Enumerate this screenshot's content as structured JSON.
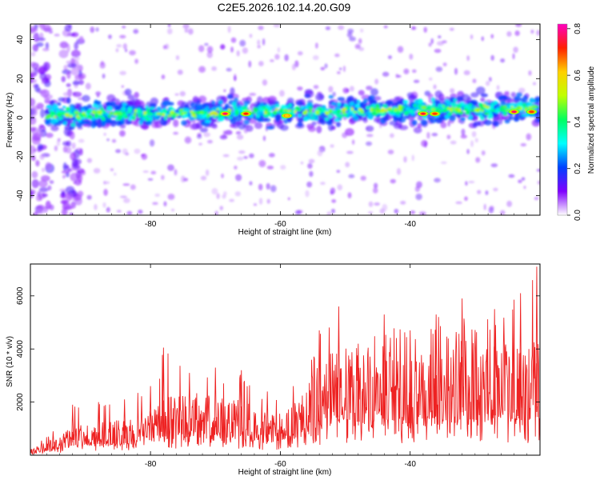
{
  "figure": {
    "title": "C2E5.2026.102.14.20.G09"
  },
  "chart_data": [
    {
      "type": "heatmap",
      "xlabel": "Height of straight line (km)",
      "ylabel": "Frequency (Hz)",
      "xlim": [
        -98.5,
        -20
      ],
      "ylim": [
        -50,
        48
      ],
      "xticks": [
        "-80",
        "-60",
        "-40"
      ],
      "yticks": [
        "40",
        "20",
        "0",
        "-20",
        "-40"
      ],
      "colorbar": {
        "label": "Normalized spectral amplitude",
        "range": [
          0.0,
          0.82
        ],
        "ticks": [
          "0.0",
          "0.2",
          "0.4",
          "0.6",
          "0.8"
        ],
        "colormap": [
          "#ffffff",
          "#7f00ff",
          "#0040ff",
          "#00ffff",
          "#00ff60",
          "#c0ff00",
          "#ffd000",
          "#ff2000",
          "#ff00c0"
        ]
      },
      "ridge": {
        "frequency_start_hz": 1,
        "frequency_end_hz": 5,
        "strong_peaks": [
          {
            "x": -68.5,
            "y": 2,
            "amp": 0.78
          },
          {
            "x": -65.3,
            "y": 2,
            "amp": 0.72
          },
          {
            "x": -59.0,
            "y": 1,
            "amp": 0.6
          },
          {
            "x": -38.0,
            "y": 2,
            "amp": 0.75
          },
          {
            "x": -36.2,
            "y": 2,
            "amp": 0.7
          },
          {
            "x": -24.0,
            "y": 3,
            "amp": 0.78
          },
          {
            "x": -21.3,
            "y": 3,
            "amp": 0.7
          }
        ]
      },
      "noise_column_x_km": [
        -97,
        -92
      ]
    },
    {
      "type": "line",
      "xlabel": "Height of straight line (km)",
      "ylabel": "SNR (10 * v/v)",
      "xlim": [
        -98.5,
        -20
      ],
      "ylim": [
        0,
        7200
      ],
      "xticks": [
        "-80",
        "-60",
        "-40"
      ],
      "yticks": [
        "6000",
        "4000",
        "2000"
      ],
      "series": [
        {
          "color": "#ee2222",
          "envelope": [
            {
              "x": -98.5,
              "mean": 120,
              "peak": 260
            },
            {
              "x": -95,
              "mean": 350,
              "peak": 900
            },
            {
              "x": -92,
              "mean": 600,
              "peak": 1900
            },
            {
              "x": -88,
              "mean": 700,
              "peak": 2000
            },
            {
              "x": -84,
              "mean": 760,
              "peak": 2100
            },
            {
              "x": -80,
              "mean": 950,
              "peak": 2600
            },
            {
              "x": -78,
              "mean": 1200,
              "peak": 4050
            },
            {
              "x": -74,
              "mean": 1300,
              "peak": 3100
            },
            {
              "x": -70,
              "mean": 1300,
              "peak": 3300
            },
            {
              "x": -66,
              "mean": 1200,
              "peak": 3200
            },
            {
              "x": -62,
              "mean": 900,
              "peak": 2400
            },
            {
              "x": -58,
              "mean": 1050,
              "peak": 2600
            },
            {
              "x": -54,
              "mean": 1900,
              "peak": 4700
            },
            {
              "x": -51,
              "mean": 2400,
              "peak": 5600
            },
            {
              "x": -48,
              "mean": 2100,
              "peak": 4200
            },
            {
              "x": -44,
              "mean": 2300,
              "peak": 5300
            },
            {
              "x": -40,
              "mean": 2000,
              "peak": 4700
            },
            {
              "x": -36,
              "mean": 2400,
              "peak": 5300
            },
            {
              "x": -32,
              "mean": 2700,
              "peak": 5900
            },
            {
              "x": -27,
              "mean": 2500,
              "peak": 5500
            },
            {
              "x": -23,
              "mean": 2200,
              "peak": 6100
            },
            {
              "x": -20.5,
              "mean": 2400,
              "peak": 7100
            }
          ]
        }
      ]
    }
  ]
}
